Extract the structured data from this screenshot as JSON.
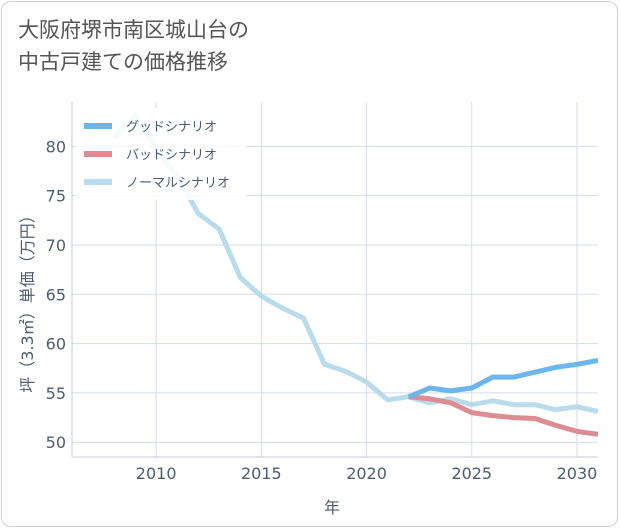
{
  "title": {
    "line1": "大阪府堺市南区城山台の",
    "line2": "中古戸建ての価格推移"
  },
  "chart_data": {
    "type": "line",
    "xlabel": "年",
    "ylabel": "坪（3.3㎡）単価（万円）",
    "xlim": [
      2006,
      2031
    ],
    "ylim": [
      48.5,
      84.5
    ],
    "x_ticks": [
      2010,
      2015,
      2020,
      2025,
      2030
    ],
    "y_ticks": [
      50,
      55,
      60,
      65,
      70,
      75,
      80
    ],
    "grid": true,
    "legend_position": "top-left",
    "series": [
      {
        "name": "グッドシナリオ",
        "color": "#6cb6ee",
        "x": [
          2022,
          2023,
          2024,
          2025,
          2026,
          2027,
          2028,
          2029,
          2030,
          2031
        ],
        "y": [
          54.6,
          55.5,
          55.2,
          55.5,
          56.6,
          56.6,
          57.1,
          57.6,
          57.9,
          58.3
        ]
      },
      {
        "name": "バッドシナリオ",
        "color": "#de8c93",
        "x": [
          2022,
          2023,
          2024,
          2025,
          2026,
          2027,
          2028,
          2029,
          2030,
          2031
        ],
        "y": [
          54.6,
          54.4,
          54.0,
          53.0,
          52.7,
          52.5,
          52.4,
          51.7,
          51.1,
          50.8
        ]
      },
      {
        "name": "ノーマルシナリオ",
        "color": "#b9dced",
        "x": [
          2008,
          2009,
          2010,
          2011,
          2012,
          2013,
          2014,
          2015,
          2016,
          2017,
          2018,
          2019,
          2020,
          2021,
          2022,
          2023,
          2024,
          2025,
          2026,
          2027,
          2028,
          2029,
          2030,
          2031
        ],
        "y": [
          80.8,
          83.2,
          79.7,
          77.0,
          73.2,
          71.6,
          66.7,
          64.8,
          63.6,
          62.6,
          57.9,
          57.2,
          56.1,
          54.3,
          54.6,
          54.0,
          54.4,
          53.8,
          54.2,
          53.8,
          53.8,
          53.3,
          53.6,
          53.1
        ]
      }
    ]
  }
}
